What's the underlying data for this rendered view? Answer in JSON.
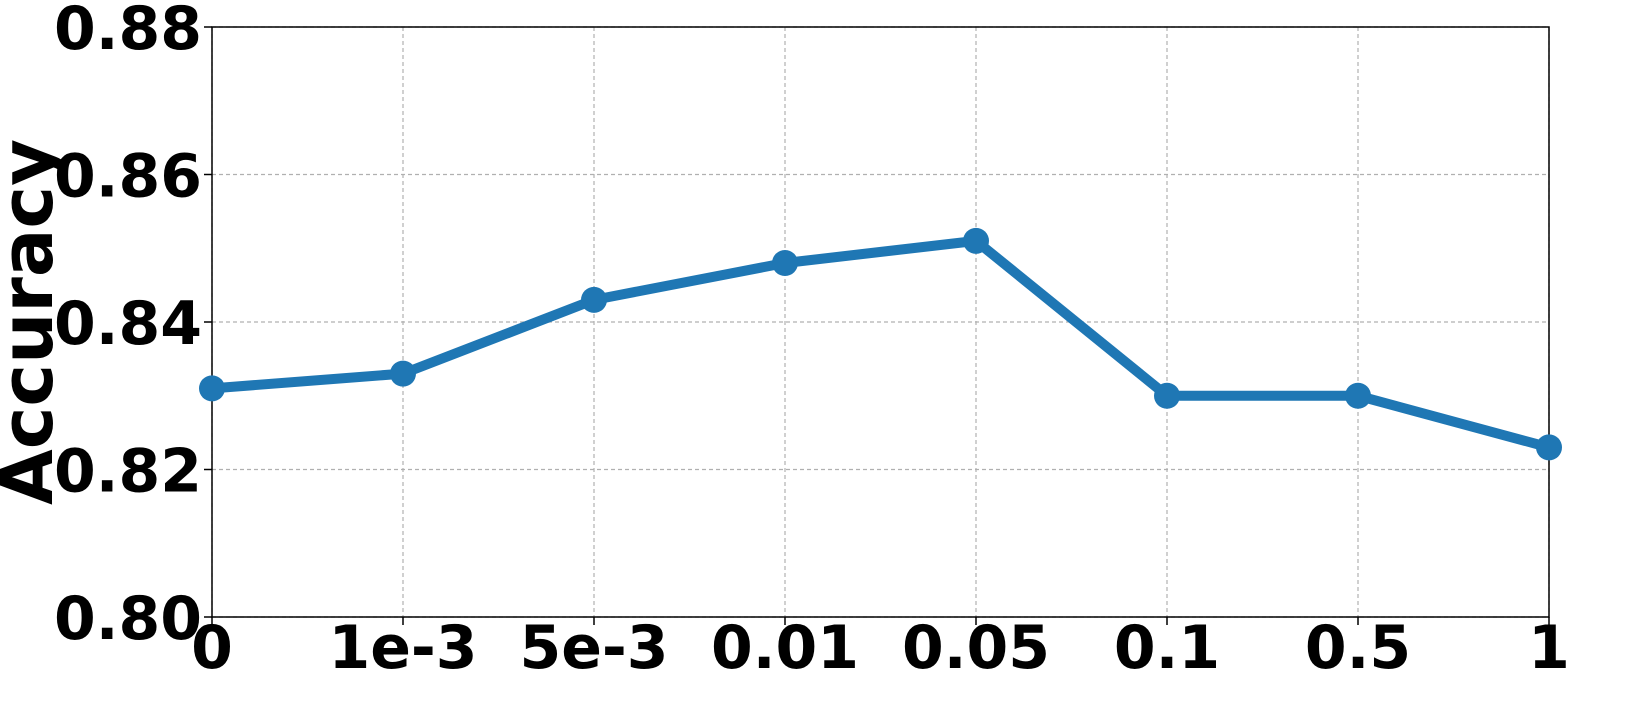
{
  "chart_data": {
    "type": "line",
    "title": "",
    "xlabel": "",
    "ylabel": "Accuracy",
    "categories": [
      "0",
      "1e-3",
      "5e-3",
      "0.01",
      "0.05",
      "0.1",
      "0.5",
      "1"
    ],
    "series": [
      {
        "values": [
          0.831,
          0.833,
          0.843,
          0.848,
          0.851,
          0.83,
          0.83,
          0.823
        ],
        "color": "#1f77b4",
        "marker": "circle"
      }
    ],
    "ylim": [
      0.8,
      0.88
    ],
    "yticks": [
      0.8,
      0.82,
      0.84,
      0.86,
      0.88
    ],
    "ytick_labels": [
      "0.80",
      "0.82",
      "0.84",
      "0.86",
      "0.88"
    ],
    "grid": true,
    "grid_style": "dashed",
    "grid_color": "#b0b0b0",
    "legend": "none"
  }
}
